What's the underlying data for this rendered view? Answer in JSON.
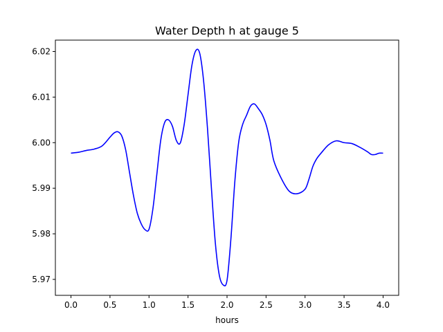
{
  "chart_data": {
    "type": "line",
    "title": "Water Depth h at gauge 5",
    "xlabel": "hours",
    "ylabel": "",
    "xlim": [
      -0.2,
      4.2
    ],
    "ylim": [
      5.9665,
      6.0225
    ],
    "xticks": [
      0.0,
      0.5,
      1.0,
      1.5,
      2.0,
      2.5,
      3.0,
      3.5,
      4.0
    ],
    "xtick_labels": [
      "0.0",
      "0.5",
      "1.0",
      "1.5",
      "2.0",
      "2.5",
      "3.0",
      "3.5",
      "4.0"
    ],
    "yticks": [
      5.97,
      5.98,
      5.99,
      6.0,
      6.01,
      6.02
    ],
    "ytick_labels": [
      "5.97",
      "5.98",
      "5.99",
      "6.00",
      "6.01",
      "6.02"
    ],
    "grid": false,
    "series": [
      {
        "color": "#0000ff",
        "x": [
          0.0,
          0.1,
          0.2,
          0.3,
          0.4,
          0.5,
          0.55,
          0.6,
          0.65,
          0.7,
          0.75,
          0.8,
          0.85,
          0.9,
          0.95,
          1.0,
          1.05,
          1.1,
          1.15,
          1.2,
          1.25,
          1.3,
          1.35,
          1.4,
          1.45,
          1.5,
          1.55,
          1.6,
          1.65,
          1.7,
          1.75,
          1.8,
          1.85,
          1.9,
          1.95,
          2.0,
          2.05,
          2.1,
          2.15,
          2.2,
          2.25,
          2.3,
          2.35,
          2.4,
          2.45,
          2.5,
          2.55,
          2.6,
          2.7,
          2.8,
          2.9,
          3.0,
          3.05,
          3.1,
          3.15,
          3.2,
          3.3,
          3.4,
          3.5,
          3.6,
          3.7,
          3.8,
          3.85,
          3.9,
          3.95,
          4.0
        ],
        "y": [
          5.9977,
          5.9979,
          5.9983,
          5.9986,
          5.9993,
          6.0012,
          6.0021,
          6.0024,
          6.0015,
          5.9985,
          5.9935,
          5.9885,
          5.9845,
          5.9822,
          5.9809,
          5.981,
          5.9855,
          5.993,
          6.0005,
          6.0044,
          6.005,
          6.0036,
          6.0005,
          5.9999,
          6.0039,
          6.0105,
          6.017,
          6.0202,
          6.0196,
          6.0135,
          6.003,
          5.99,
          5.978,
          5.971,
          5.9688,
          5.9698,
          5.979,
          5.9915,
          6.0002,
          6.004,
          6.006,
          6.008,
          6.0085,
          6.0075,
          6.0062,
          6.004,
          6.0005,
          5.996,
          5.992,
          5.9893,
          5.9888,
          5.9898,
          5.992,
          5.9948,
          5.9965,
          5.9976,
          5.9995,
          6.0004,
          6.0,
          5.9998,
          5.999,
          5.998,
          5.9974,
          5.9974,
          5.9977,
          5.9977
        ]
      }
    ]
  }
}
